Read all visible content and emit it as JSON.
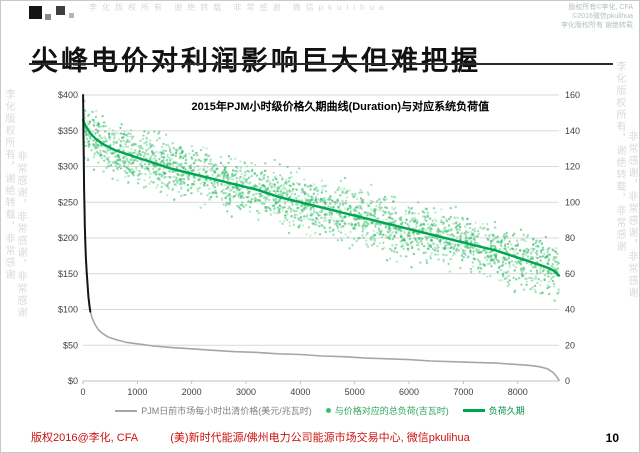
{
  "slide": {
    "title": "尖峰电价对利润影响巨大但难把握",
    "footer_left": "版权2016@李化, CFA",
    "footer_center": "(美)新时代能源/佛州电力公司能源市场交易中心, 微信pkulihua",
    "page_number": "10"
  },
  "watermarks": {
    "top_line": "李化版权所有 谢绝转载 非常感谢 微信pkulihua",
    "top_right_lines": [
      "版权所有©李化, CFA",
      "©2016微信pkulihua",
      "李化版权所有 谢绝转载"
    ],
    "left_columns": [
      "李化版权所有，谢绝转载，非常感谢",
      "非常感谢，非常感谢，非常感谢"
    ],
    "right_columns": [
      "李化版权所有，谢绝转载，非常感谢",
      "非常感谢，非常感谢，非常感谢"
    ]
  },
  "legend": {
    "items": [
      {
        "label": "PJM日前市场每小时出清价格(美元/兆瓦时)",
        "swatch": "line",
        "color": "#a6a6a6",
        "label_color": "#7f7f7f"
      },
      {
        "label": "与价格对应的总负荷(吉瓦时)",
        "swatch": "dot",
        "color": "#3abf6e",
        "label_color": "#2fa45e"
      },
      {
        "label": "负荷久期",
        "swatch": "thick-line",
        "color": "#00a550",
        "label_color": "#008f46"
      }
    ]
  },
  "chart_data": {
    "type": "line+scatter",
    "title": "2015年PJM小时级价格久期曲线(Duration)与对应系统负荷值",
    "x_axis": {
      "min": 0,
      "max": 8760,
      "tick_values": [
        0,
        1000,
        2000,
        3000,
        4000,
        5000,
        6000,
        7000,
        8000
      ],
      "labels": [
        "0",
        "1000",
        "2000",
        "3000",
        "4000",
        "5000",
        "6000",
        "7000",
        "8000"
      ]
    },
    "y_left": {
      "min": 0,
      "max": 400,
      "labels": [
        "$0",
        "$50",
        "$100",
        "$150",
        "$200",
        "$250",
        "$300",
        "$350",
        "$400"
      ],
      "unit": "美元/兆瓦时"
    },
    "y_right": {
      "min": 0,
      "max": 160,
      "labels": [
        "0",
        "20",
        "40",
        "60",
        "80",
        "100",
        "120",
        "140",
        "160"
      ],
      "unit": "吉瓦时"
    },
    "grid_color": "#d9d9d9",
    "axis_color": "#bfbfbf",
    "tick_text_color": "#404040",
    "series": [
      {
        "id": "price-spike",
        "type": "line",
        "axis": "left",
        "color": "#151515",
        "width": 2,
        "points": [
          [
            2,
            400
          ],
          [
            5,
            372
          ],
          [
            8,
            346
          ],
          [
            12,
            320
          ],
          [
            16,
            294
          ],
          [
            21,
            268
          ],
          [
            27,
            242
          ],
          [
            34,
            218
          ],
          [
            43,
            194
          ],
          [
            54,
            172
          ],
          [
            68,
            152
          ],
          [
            84,
            134
          ],
          [
            100,
            118
          ],
          [
            118,
            106
          ],
          [
            135,
            97
          ]
        ]
      },
      {
        "id": "price",
        "name": "PJM日前市场每小时出清价格(美元/兆瓦时)",
        "type": "line",
        "axis": "left",
        "color": "#a6a6a6",
        "width": 1.6,
        "points": [
          [
            135,
            97
          ],
          [
            170,
            88
          ],
          [
            220,
            79
          ],
          [
            280,
            72
          ],
          [
            350,
            67
          ],
          [
            450,
            62
          ],
          [
            600,
            58
          ],
          [
            800,
            54
          ],
          [
            1000,
            52
          ],
          [
            1300,
            49
          ],
          [
            1600,
            47
          ],
          [
            2000,
            45
          ],
          [
            2400,
            43
          ],
          [
            2800,
            41
          ],
          [
            3200,
            40
          ],
          [
            3600,
            38
          ],
          [
            4000,
            37
          ],
          [
            4400,
            35
          ],
          [
            4800,
            34
          ],
          [
            5200,
            32
          ],
          [
            5600,
            31
          ],
          [
            6000,
            30
          ],
          [
            6400,
            28
          ],
          [
            6800,
            27
          ],
          [
            7200,
            26
          ],
          [
            7600,
            25
          ],
          [
            8000,
            23
          ],
          [
            8200,
            22
          ],
          [
            8400,
            20
          ],
          [
            8550,
            17
          ],
          [
            8650,
            12
          ],
          [
            8720,
            6
          ],
          [
            8760,
            1
          ]
        ]
      },
      {
        "id": "load-scatter",
        "name": "与价格对应的总负荷(吉瓦时)",
        "type": "scatter",
        "axis": "right",
        "color": "#3abf6e",
        "radius": 1.2,
        "count": 2600,
        "spread": 15,
        "seed": 7,
        "base": "load-duration",
        "clamp": [
          45,
          157
        ]
      },
      {
        "id": "load-duration",
        "name": "负荷久期",
        "type": "line",
        "axis": "right",
        "color": "#00a550",
        "width": 2.4,
        "points": [
          [
            0,
            146
          ],
          [
            60,
            142
          ],
          [
            150,
            138
          ],
          [
            250,
            135
          ],
          [
            400,
            132
          ],
          [
            600,
            129
          ],
          [
            800,
            127
          ],
          [
            1000,
            125
          ],
          [
            1300,
            122
          ],
          [
            1600,
            119
          ],
          [
            2000,
            116
          ],
          [
            2400,
            113
          ],
          [
            2800,
            110
          ],
          [
            3200,
            107
          ],
          [
            3600,
            103
          ],
          [
            4000,
            100
          ],
          [
            4400,
            97
          ],
          [
            4800,
            94
          ],
          [
            5200,
            91
          ],
          [
            5600,
            88
          ],
          [
            6000,
            85
          ],
          [
            6400,
            82
          ],
          [
            6800,
            79
          ],
          [
            7200,
            76
          ],
          [
            7600,
            73
          ],
          [
            8000,
            69
          ],
          [
            8300,
            66
          ],
          [
            8500,
            64
          ],
          [
            8650,
            62
          ],
          [
            8760,
            59
          ]
        ]
      }
    ]
  }
}
